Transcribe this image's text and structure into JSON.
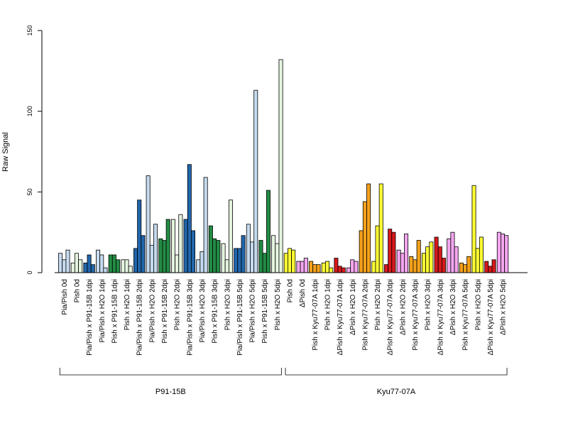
{
  "chart_data": {
    "type": "bar",
    "ylabel": "Raw Signal",
    "ylim": [
      0,
      150
    ],
    "yticks": [
      "0",
      "50",
      "100",
      "150"
    ],
    "ytick_values": [
      0,
      50,
      100,
      150
    ],
    "colors": {
      "white": "#f2f2f2",
      "light_blue": "#c6dbef",
      "blue": "#2166ac",
      "light_green": "#e5f5e0",
      "green": "#238b45",
      "yellow": "#ffff33",
      "pink": "#f4a6f0",
      "red": "#d7191c",
      "orange": "#f7a21b"
    },
    "categories": [
      {
        "label": "Pia/Pish 0d",
        "color": "light_blue",
        "values": [
          12,
          8,
          14
        ]
      },
      {
        "label": "Pish 0d",
        "color": "light_green",
        "values": [
          6,
          12,
          8
        ]
      },
      {
        "label": "Pia/Pish x P91-15B 1dpi",
        "color": "blue",
        "values": [
          6,
          11,
          5
        ]
      },
      {
        "label": "Pia/Pish x H2O 1dpi",
        "color": "light_blue",
        "values": [
          14,
          11,
          3
        ]
      },
      {
        "label": "Pish x P91-15B 1dpi",
        "color": "green",
        "values": [
          11,
          11,
          8
        ]
      },
      {
        "label": "Pish x H2O 1dpi",
        "color": "light_green",
        "values": [
          8,
          8,
          4
        ]
      },
      {
        "label": "Pia/Pish x P91-15B 2dpi",
        "color": "blue",
        "values": [
          15,
          45,
          23
        ]
      },
      {
        "label": "Pia/Pish x H2O 2dpi",
        "color": "light_blue",
        "values": [
          60,
          17,
          30
        ]
      },
      {
        "label": "Pish x P91-15B 2dpi",
        "color": "green",
        "values": [
          21,
          20,
          33
        ]
      },
      {
        "label": "Pish x H2O 2dpi",
        "color": "light_green",
        "values": [
          33,
          11,
          36
        ]
      },
      {
        "label": "Pia/Pish x P91-15B 3dpi",
        "color": "blue",
        "values": [
          33,
          67,
          26
        ]
      },
      {
        "label": "Pia/Pish x H2O 3dpi",
        "color": "light_blue",
        "values": [
          8,
          13,
          59
        ]
      },
      {
        "label": "Pish x P91-15B 3dpi",
        "color": "green",
        "values": [
          29,
          21,
          20
        ]
      },
      {
        "label": "Pish x H2O 3dpi",
        "color": "light_green",
        "values": [
          18,
          8,
          45
        ]
      },
      {
        "label": "Pia/Pish x P91-15B 5dpi",
        "color": "blue",
        "values": [
          15,
          15,
          23
        ]
      },
      {
        "label": "Pia/Pish x H2O 5dpi",
        "color": "light_blue",
        "values": [
          30,
          19,
          113
        ]
      },
      {
        "label": "Pish x P91-15B 5dpi",
        "color": "green",
        "values": [
          20,
          12,
          51
        ]
      },
      {
        "label": "Pish x H2O 5dpi",
        "color": "light_green",
        "values": [
          23,
          18,
          132
        ]
      },
      {
        "label": "Pish 0d",
        "color": "yellow",
        "values": [
          12,
          15,
          14
        ]
      },
      {
        "label": "ΔPish 0d",
        "color": "pink",
        "values": [
          7,
          7,
          9
        ]
      },
      {
        "label": "Pish x Kyu77-07A 1dpi",
        "color": "orange",
        "values": [
          7,
          5,
          5
        ]
      },
      {
        "label": "Pish x H2O 1dpi",
        "color": "yellow",
        "values": [
          6,
          7,
          3
        ]
      },
      {
        "label": "ΔPish x Kyu77-07A 1dpi",
        "color": "red",
        "values": [
          9,
          4,
          3
        ]
      },
      {
        "label": "ΔPish x H2O 1dpi",
        "color": "pink",
        "values": [
          3,
          8,
          7
        ]
      },
      {
        "label": "Pish x Kyu77-07A 2dpi",
        "color": "orange",
        "values": [
          26,
          44,
          55
        ]
      },
      {
        "label": "Pish x H2O 2dpi",
        "color": "yellow",
        "values": [
          7,
          29,
          55
        ]
      },
      {
        "label": "ΔPish x Kyu77-07A 2dpi",
        "color": "red",
        "values": [
          5,
          27,
          25
        ]
      },
      {
        "label": "ΔPish x H2O 2dpi",
        "color": "pink",
        "values": [
          14,
          12,
          24
        ]
      },
      {
        "label": "Pish x Kyu77-07A 3dpi",
        "color": "orange",
        "values": [
          10,
          8,
          20
        ]
      },
      {
        "label": "Pish x H2O 3dpi",
        "color": "yellow",
        "values": [
          12,
          16,
          19
        ]
      },
      {
        "label": "ΔPish x Kyu77-07A 3dpi",
        "color": "red",
        "values": [
          22,
          16,
          9
        ]
      },
      {
        "label": "ΔPish x H2O 3dpi",
        "color": "pink",
        "values": [
          21,
          25,
          16
        ]
      },
      {
        "label": "Pish x Kyu77-07A 5dpi",
        "color": "orange",
        "values": [
          6,
          5,
          10
        ]
      },
      {
        "label": "Pish x H2O 5dpi",
        "color": "yellow",
        "values": [
          54,
          15,
          22
        ]
      },
      {
        "label": "ΔPish x Kyu77-07A 5dpi",
        "color": "red",
        "values": [
          7,
          4,
          8
        ]
      },
      {
        "label": "ΔPish x H2O 5dpi",
        "color": "pink",
        "values": [
          25,
          24,
          23
        ]
      }
    ],
    "groups": [
      {
        "label": "P91-15B",
        "from": 0,
        "to": 17
      },
      {
        "label": "Kyu77-07A",
        "from": 18,
        "to": 35
      }
    ],
    "grid": false,
    "legend": "none"
  }
}
